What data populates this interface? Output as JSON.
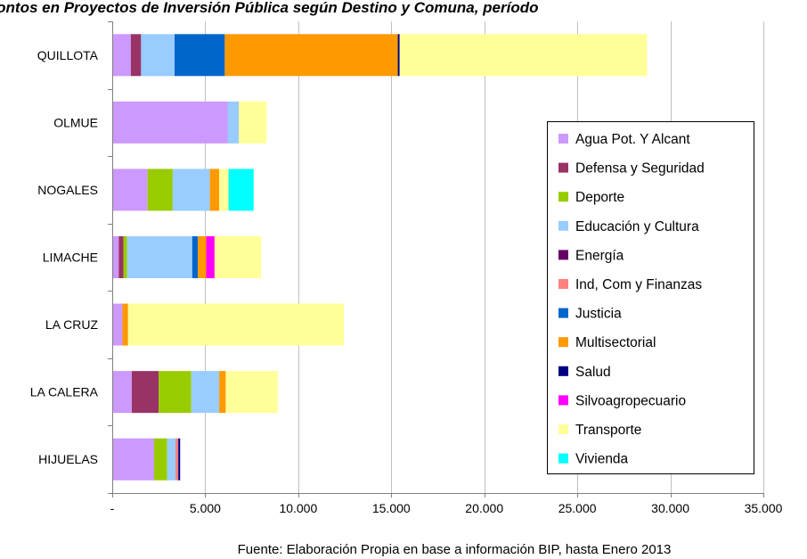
{
  "chart_data": {
    "type": "bar",
    "orientation": "horizontal",
    "stacked": true,
    "title": "Montos en Proyectos de Inversión Pública según Destino y Comuna, período",
    "source": "Fuente: Elaboración Propia en base a información BIP, hasta Enero 2013",
    "categories": [
      "QUILLOTA",
      "OLMUE",
      "NOGALES",
      "LIMACHE",
      "LA CRUZ",
      "LA CALERA",
      "HIJUELAS"
    ],
    "xlim": [
      0,
      35000
    ],
    "xticks": [
      0,
      5000,
      10000,
      15000,
      20000,
      25000,
      30000,
      35000
    ],
    "xtick_labels": [
      "-",
      "5.000",
      "10.000",
      "15.000",
      "20.000",
      "25.000",
      "30.000",
      "35.000"
    ],
    "grid": "vertical",
    "legend_position": "right-inside",
    "series": [
      {
        "name": "Agua Pot. Y Alcant",
        "color": "#cc99ff",
        "values": [
          1000,
          6200,
          1900,
          350,
          550,
          1050,
          2250
        ]
      },
      {
        "name": "Defensa y Seguridad",
        "color": "#993366",
        "values": [
          550,
          0,
          0,
          250,
          0,
          1450,
          0
        ]
      },
      {
        "name": "Deporte",
        "color": "#99cc00",
        "values": [
          0,
          0,
          1350,
          200,
          0,
          1750,
          700
        ]
      },
      {
        "name": "Educación y Cultura",
        "color": "#99ccff",
        "values": [
          1800,
          600,
          2000,
          3500,
          0,
          1500,
          450
        ]
      },
      {
        "name": "Energía",
        "color": "#660066",
        "values": [
          0,
          0,
          0,
          0,
          0,
          0,
          0
        ]
      },
      {
        "name": "Ind, Com y Finanzas",
        "color": "#ff8080",
        "values": [
          0,
          0,
          0,
          0,
          0,
          0,
          150
        ]
      },
      {
        "name": "Justicia",
        "color": "#0066cc",
        "values": [
          2700,
          0,
          0,
          300,
          0,
          0,
          0
        ]
      },
      {
        "name": "Multisectorial",
        "color": "#ff9900",
        "values": [
          9300,
          0,
          500,
          450,
          300,
          350,
          0
        ]
      },
      {
        "name": "Salud",
        "color": "#000080",
        "values": [
          100,
          0,
          0,
          0,
          0,
          0,
          100
        ]
      },
      {
        "name": "Silvoagropecuario",
        "color": "#ff00ff",
        "values": [
          0,
          0,
          0,
          450,
          0,
          0,
          0
        ]
      },
      {
        "name": "Transporte",
        "color": "#ffff99",
        "values": [
          13300,
          1500,
          500,
          2500,
          11600,
          2800,
          0
        ]
      },
      {
        "name": "Vivienda",
        "color": "#00ffff",
        "values": [
          0,
          0,
          1350,
          0,
          0,
          0,
          0
        ]
      }
    ]
  }
}
